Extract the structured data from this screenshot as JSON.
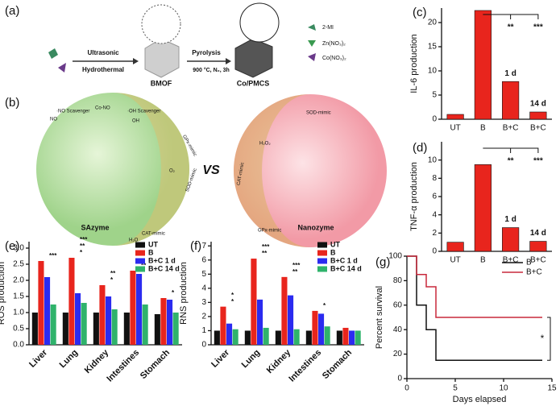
{
  "diagram": {
    "a": {
      "label": "(a)",
      "step1_top": "Ultrasonic",
      "step1_bottom": "Hydrothermal",
      "intermediate": "BMOF",
      "step2_top": "Pyrolysis",
      "step2_bottom": "900 °C, N₂, 3h",
      "product": "Co/PMCS",
      "legend": [
        "2-MI",
        "Zn(NO₃)₂",
        "Co(NO₃)₂"
      ]
    },
    "b": {
      "label": "(b)",
      "versus": "VS",
      "left": "SAzyme",
      "right": "Nanozyme",
      "left_tags": [
        "·NO Scavenger",
        "Co-NO",
        "·OH Scavenger",
        "GPx-mimic",
        "SOD-mimic",
        "CAT-mimic"
      ],
      "right_tags": [
        "SOD-mimic",
        "CAT-mimic",
        "GPx-mimic"
      ],
      "species": [
        "NO",
        "OH",
        "O₂",
        "H₂O₂",
        "H₂O"
      ]
    }
  },
  "chart_data": [
    {
      "type": "bar",
      "label": "(c)",
      "ylabel": "IL-6 production",
      "categories": [
        "UT",
        "B",
        "B+C",
        "B+C"
      ],
      "values": [
        1,
        22.5,
        7.8,
        1.5
      ],
      "color": "#e8251d",
      "bar_labels": [
        null,
        null,
        "1 d",
        "14 d"
      ],
      "significance": [
        null,
        null,
        "**",
        "***"
      ],
      "ylim": [
        0,
        23
      ],
      "yticks": [
        0,
        5,
        10,
        15,
        20
      ]
    },
    {
      "type": "bar",
      "label": "(d)",
      "ylabel": "TNF-α production",
      "categories": [
        "UT",
        "B",
        "B+C",
        "B+C"
      ],
      "values": [
        1,
        9.5,
        2.6,
        1.1
      ],
      "color": "#e8251d",
      "bar_labels": [
        null,
        null,
        "1 d",
        "14 d"
      ],
      "significance": [
        null,
        null,
        "**",
        "***"
      ],
      "ylim": [
        0,
        12
      ],
      "yticks": [
        0,
        2,
        4,
        6,
        8,
        10
      ]
    },
    {
      "type": "bar",
      "label": "(e)",
      "ylabel": "ROS production",
      "categories": [
        "Liver",
        "Lung",
        "Kidney",
        "Intestines",
        "Stomach"
      ],
      "series": [
        {
          "name": "UT",
          "color": "#111111",
          "values": [
            1.0,
            1.0,
            1.0,
            1.0,
            0.95
          ]
        },
        {
          "name": "B",
          "color": "#e8251d",
          "values": [
            2.6,
            2.7,
            1.85,
            2.3,
            1.45
          ]
        },
        {
          "name": "B+C 1 d",
          "color": "#2b2bf0",
          "values": [
            2.1,
            1.6,
            1.5,
            2.2,
            1.4
          ]
        },
        {
          "name": "B+C 14 d",
          "color": "#2fb36b",
          "values": [
            1.25,
            1.3,
            1.1,
            1.25,
            1.0
          ]
        }
      ],
      "significance": [
        [
          "***"
        ],
        [
          "*",
          "**",
          "***"
        ],
        [
          "*",
          "**"
        ],
        [
          "**"
        ],
        [
          "*"
        ]
      ],
      "ylim": [
        0,
        3.2
      ],
      "yticks": [
        {
          "value": 0,
          "label": "0.0"
        },
        0.5,
        {
          "value": 1,
          "label": "1.0"
        },
        1.5,
        {
          "value": 2,
          "label": "2.0"
        },
        2.5,
        {
          "value": 3,
          "label": "3.0"
        }
      ]
    },
    {
      "type": "bar",
      "label": "(f)",
      "ylabel": "RNS production",
      "categories": [
        "Liver",
        "Lung",
        "Kidney",
        "Intestines",
        "Stomach"
      ],
      "series": [
        {
          "name": "UT",
          "color": "#111111",
          "values": [
            1,
            1,
            1,
            1,
            1
          ]
        },
        {
          "name": "B",
          "color": "#e8251d",
          "values": [
            2.7,
            6.1,
            4.8,
            2.4,
            1.2
          ]
        },
        {
          "name": "B+C 1 d",
          "color": "#2b2bf0",
          "values": [
            1.5,
            3.2,
            3.5,
            2.2,
            1.0
          ]
        },
        {
          "name": "B+C 14 d",
          "color": "#2fb36b",
          "values": [
            1.1,
            1.2,
            1.1,
            1.3,
            1.0
          ]
        }
      ],
      "significance": [
        [
          "*",
          "*"
        ],
        [
          "**",
          "***"
        ],
        [
          "**",
          "***"
        ],
        [
          "*"
        ],
        null
      ],
      "ylim": [
        0,
        7.3
      ],
      "yticks": [
        0,
        1,
        2,
        3,
        4,
        5,
        6,
        7
      ]
    },
    {
      "type": "line",
      "label": "(g)",
      "ylabel": "Percent survival",
      "xlabel": "Days elapsed",
      "annotation": "*",
      "series": [
        {
          "name": "B",
          "color": "#111111",
          "x": [
            0,
            1,
            1,
            2,
            2,
            3,
            3,
            14
          ],
          "values": [
            100,
            100,
            60,
            60,
            40,
            40,
            15,
            15
          ]
        },
        {
          "name": "B+C",
          "color": "#c8283c",
          "x": [
            0,
            1,
            1,
            2,
            2,
            3,
            3,
            14
          ],
          "values": [
            100,
            100,
            85,
            85,
            75,
            75,
            50,
            50
          ]
        }
      ],
      "xlim": [
        0,
        15
      ],
      "xticks": [
        0,
        5,
        10,
        15
      ],
      "ylim": [
        0,
        100
      ],
      "yticks": [
        0,
        20,
        40,
        60,
        80,
        100
      ]
    }
  ]
}
